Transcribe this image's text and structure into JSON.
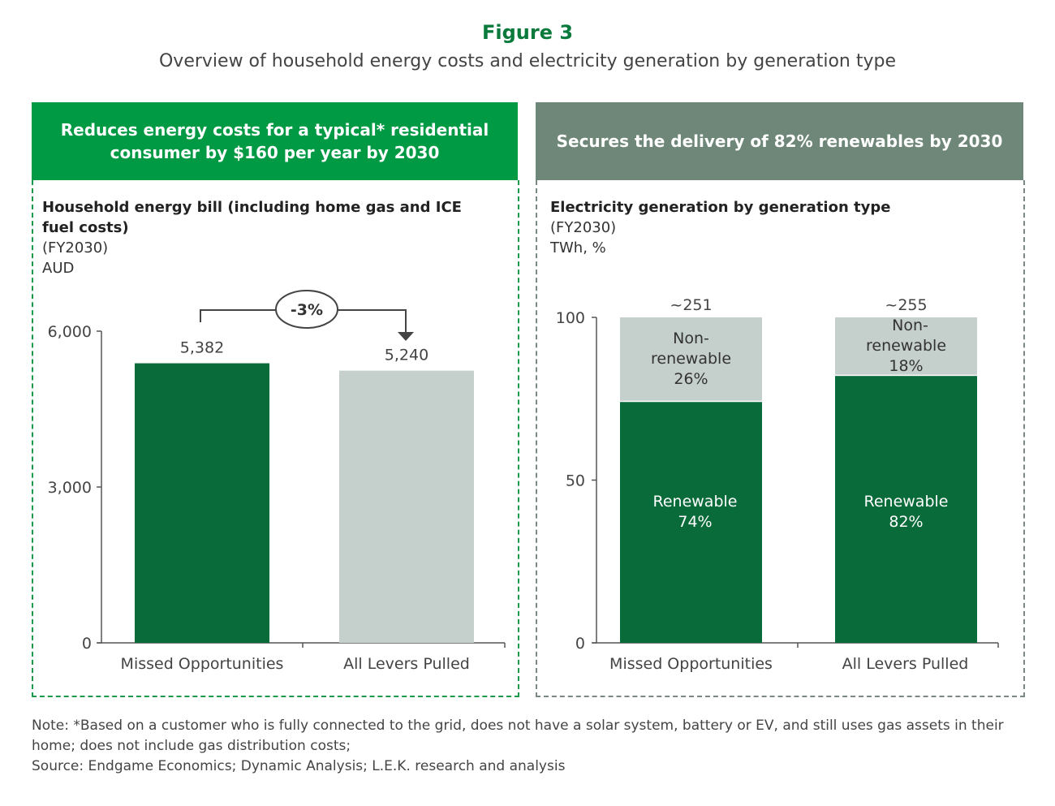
{
  "figure_label": "Figure 3",
  "subtitle": "Overview of household energy costs and electricity generation by generation type",
  "left_header": "Reduces energy costs for a typical* residential consumer by $160 per year by 2030",
  "right_header": "Secures the delivery of 82% renewables by 2030",
  "colors": {
    "green_header": "#009a44",
    "grey_header": "#6f8779",
    "dark_green": "#0a6b3a",
    "light_grey": "#c5cfcc"
  },
  "chart_data": [
    {
      "type": "bar",
      "title": "Household energy bill (including home gas and ICE fuel costs)",
      "period": "(FY2030)",
      "ylabel": "AUD",
      "categories": [
        "Missed Opportunities",
        "All Levers Pulled"
      ],
      "values": [
        5382,
        5240
      ],
      "value_labels": [
        "5,382",
        "5,240"
      ],
      "ylim": [
        0,
        6000
      ],
      "yticks": [
        0,
        3000,
        6000
      ],
      "ytick_labels": [
        "0",
        "3,000",
        "6,000"
      ],
      "annotation": "-3%",
      "grid": false
    },
    {
      "type": "bar",
      "stacked": true,
      "title": "Electricity generation by generation type",
      "period": "(FY2030)",
      "ylabel": "TWh, %",
      "categories": [
        "Missed Opportunities",
        "All Levers Pulled"
      ],
      "totals": [
        "~251",
        "~255"
      ],
      "series": [
        {
          "name": "Renewable",
          "values": [
            74,
            82
          ],
          "labels": [
            "74%",
            "82%"
          ]
        },
        {
          "name": "Non-renewable",
          "values": [
            26,
            18
          ],
          "labels": [
            "26%",
            "18%"
          ]
        }
      ],
      "ylim": [
        0,
        100
      ],
      "yticks": [
        0,
        50,
        100
      ],
      "ytick_labels": [
        "0",
        "50",
        "100"
      ],
      "grid": false
    }
  ],
  "note": "Note: *Based on a customer who is fully connected to the grid, does not have a solar system, battery or EV, and still uses gas assets in their home; does not include gas distribution costs;",
  "source": "Source: Endgame Economics; Dynamic Analysis; L.E.K. research and analysis"
}
